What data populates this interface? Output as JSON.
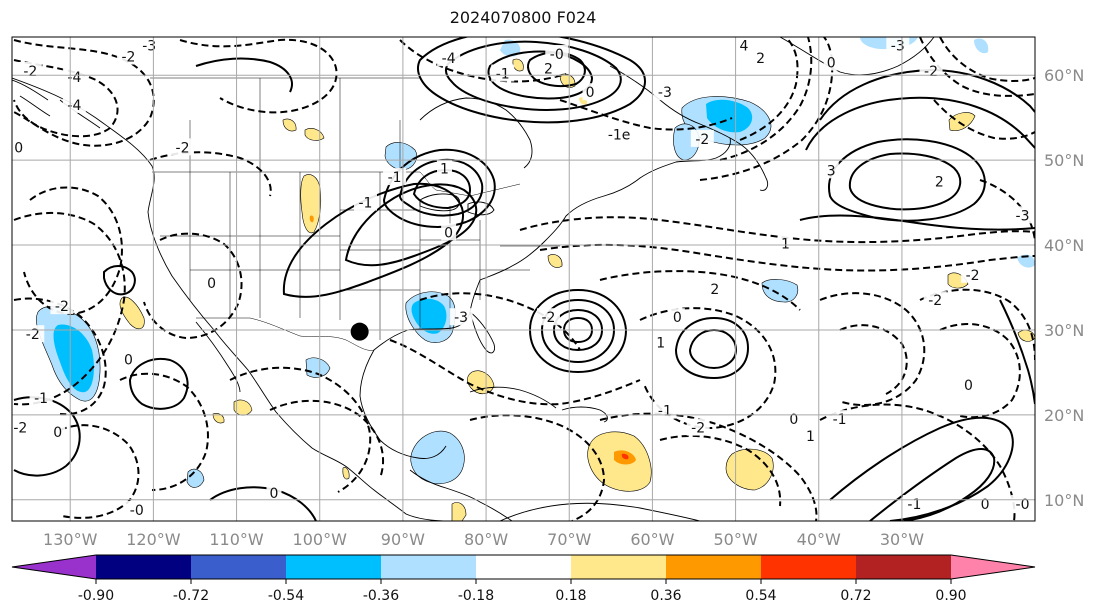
{
  "title": "2024070800 F024",
  "map": {
    "projection": "plate-carree",
    "lon_range": [
      -137,
      -14
    ],
    "lat_range": [
      7.5,
      64.5
    ],
    "gridlines": true,
    "lon_ticks": [
      {
        "lon": -130,
        "label": "130°W"
      },
      {
        "lon": -120,
        "label": "120°W"
      },
      {
        "lon": -110,
        "label": "110°W"
      },
      {
        "lon": -100,
        "label": "100°W"
      },
      {
        "lon": -90,
        "label": "90°W"
      },
      {
        "lon": -80,
        "label": "80°W"
      },
      {
        "lon": -70,
        "label": "70°W"
      },
      {
        "lon": -60,
        "label": "60°W"
      },
      {
        "lon": -50,
        "label": "50°W"
      },
      {
        "lon": -40,
        "label": "40°W"
      },
      {
        "lon": -30,
        "label": "30°W"
      }
    ],
    "lat_ticks": [
      {
        "lat": 60,
        "label": "60°N"
      },
      {
        "lat": 50,
        "label": "50°N"
      },
      {
        "lat": 40,
        "label": "40°N"
      },
      {
        "lat": 30,
        "label": "30°N"
      },
      {
        "lat": 20,
        "label": "20°N"
      },
      {
        "lat": 10,
        "label": "10°N"
      }
    ],
    "marker": {
      "lon": -95.2,
      "lat": 29.8,
      "color": "#000000"
    },
    "colors": {
      "land_outline": "#000000",
      "grid": "#a8a8a8",
      "contour": "#000000"
    },
    "contour_labels": [
      {
        "text": "-3",
        "lon": -120.5,
        "lat": 63.5
      },
      {
        "text": "-2",
        "lon": -123.0,
        "lat": 62.2
      },
      {
        "text": "-4",
        "lon": -129.5,
        "lat": 59.8
      },
      {
        "text": "-4",
        "lon": -129.5,
        "lat": 56.5
      },
      {
        "text": "-2",
        "lon": -116.5,
        "lat": 51.5
      },
      {
        "text": "-2",
        "lon": -134.8,
        "lat": 60.5
      },
      {
        "text": "0",
        "lon": -136.2,
        "lat": 51.5
      },
      {
        "text": "-2",
        "lon": -131.0,
        "lat": 32.8
      },
      {
        "text": "-2",
        "lon": -134.5,
        "lat": 29.5
      },
      {
        "text": "-1",
        "lon": -133.5,
        "lat": 22.0
      },
      {
        "text": "-2",
        "lon": -136.0,
        "lat": 18.5
      },
      {
        "text": "0",
        "lon": -131.5,
        "lat": 18.0
      },
      {
        "text": "0",
        "lon": -123.0,
        "lat": 26.5
      },
      {
        "text": "0",
        "lon": -113.0,
        "lat": 35.5
      },
      {
        "text": "-0",
        "lon": -122.0,
        "lat": 8.8
      },
      {
        "text": "0",
        "lon": -105.5,
        "lat": 10.8
      },
      {
        "text": "-4",
        "lon": -84.5,
        "lat": 62.0
      },
      {
        "text": "2",
        "lon": -72.5,
        "lat": 60.8
      },
      {
        "text": "-1",
        "lon": -78.0,
        "lat": 60.2
      },
      {
        "text": "-0",
        "lon": -71.5,
        "lat": 62.5
      },
      {
        "text": "0",
        "lon": -67.5,
        "lat": 58.0
      },
      {
        "text": "-1",
        "lon": -94.5,
        "lat": 45.0
      },
      {
        "text": "0",
        "lon": -84.5,
        "lat": 41.5
      },
      {
        "text": "-1",
        "lon": -91.0,
        "lat": 48.0
      },
      {
        "text": "1",
        "lon": -85.0,
        "lat": 49.0
      },
      {
        "text": "-1e",
        "lon": -64.0,
        "lat": 53.0
      },
      {
        "text": "-2",
        "lon": -54.0,
        "lat": 52.5
      },
      {
        "text": "-3",
        "lon": -58.5,
        "lat": 58.0
      },
      {
        "text": "4",
        "lon": -49.0,
        "lat": 63.5
      },
      {
        "text": "2",
        "lon": -47.0,
        "lat": 62.0
      },
      {
        "text": "0",
        "lon": -38.5,
        "lat": 61.5
      },
      {
        "text": "-3",
        "lon": -30.5,
        "lat": 63.5
      },
      {
        "text": "-2",
        "lon": -26.5,
        "lat": 60.5
      },
      {
        "text": "3",
        "lon": -38.5,
        "lat": 48.8
      },
      {
        "text": "2",
        "lon": -25.5,
        "lat": 47.5
      },
      {
        "text": "1",
        "lon": -44.0,
        "lat": 40.2
      },
      {
        "text": "-3",
        "lon": -15.5,
        "lat": 43.5
      },
      {
        "text": "-2",
        "lon": -21.5,
        "lat": 36.5
      },
      {
        "text": "-2",
        "lon": -26.0,
        "lat": 33.5
      },
      {
        "text": "-3",
        "lon": -83.0,
        "lat": 31.5
      },
      {
        "text": "-2",
        "lon": -72.5,
        "lat": 31.5
      },
      {
        "text": "2",
        "lon": -52.5,
        "lat": 34.8
      },
      {
        "text": "0",
        "lon": -57.0,
        "lat": 31.5
      },
      {
        "text": "1",
        "lon": -59.0,
        "lat": 28.5
      },
      {
        "text": "-1",
        "lon": -58.5,
        "lat": 20.5
      },
      {
        "text": "-2",
        "lon": -54.5,
        "lat": 18.5
      },
      {
        "text": "0",
        "lon": -43.0,
        "lat": 19.5
      },
      {
        "text": "-1",
        "lon": -37.5,
        "lat": 19.5
      },
      {
        "text": "1",
        "lon": -41.0,
        "lat": 17.5
      },
      {
        "text": "0",
        "lon": -22.0,
        "lat": 23.5
      },
      {
        "text": "-1",
        "lon": -28.5,
        "lat": 9.5
      },
      {
        "text": "0",
        "lon": -20.0,
        "lat": 9.5
      },
      {
        "text": "-0",
        "lon": -15.5,
        "lat": 9.5
      }
    ]
  },
  "colorbar": {
    "levels": [
      "-0.90",
      "-0.72",
      "-0.54",
      "-0.36",
      "-0.18",
      "0.18",
      "0.36",
      "0.54",
      "0.72",
      "0.90"
    ],
    "colors": [
      "#9932cc",
      "#000080",
      "#3a5fcd",
      "#00bfff",
      "#b0e0ff",
      "#ffffff",
      "#ffe88c",
      "#ff9900",
      "#ff3300",
      "#b22222",
      "#ff82ab"
    ]
  }
}
